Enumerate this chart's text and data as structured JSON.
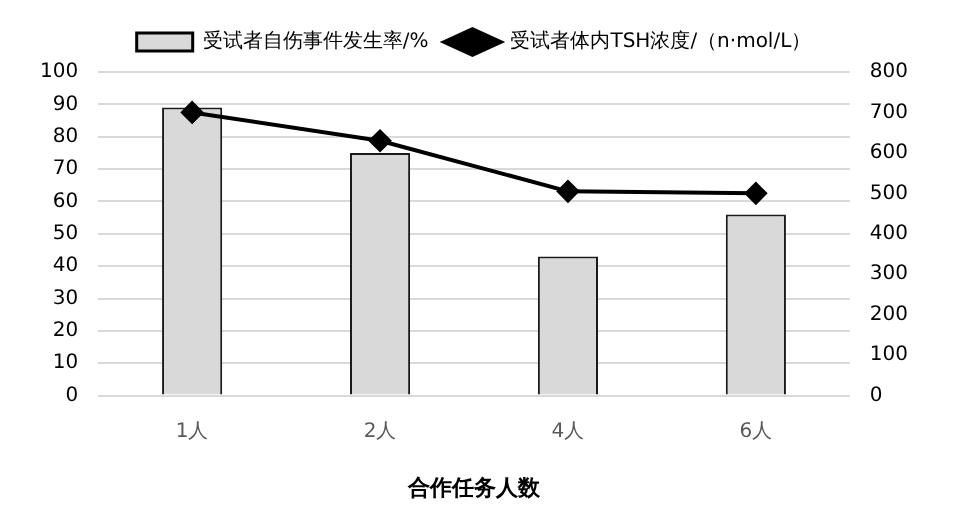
{
  "chart_data": {
    "type": "bar",
    "xlabel": "合作任务人数",
    "categories": [
      "1人",
      "2人",
      "4人",
      "6人"
    ],
    "series": [
      {
        "name": "受试者自伤事件发生率/%",
        "color": "#d9d9d9",
        "values": [
          89,
          75,
          43,
          56
        ]
      },
      {
        "name": "受试者体内TSH浓度/（n·mol/L）",
        "type": "line",
        "axis": "y2",
        "color": "#000000",
        "values": [
          700,
          630,
          505,
          500
        ],
        "marker": "diamond"
      }
    ],
    "ylim": [
      0,
      100
    ],
    "yticks": [
      0,
      10,
      20,
      30,
      40,
      50,
      60,
      70,
      80,
      90,
      100
    ],
    "y2lim": [
      0,
      800
    ],
    "y2ticks": [
      0,
      100,
      200,
      300,
      400,
      500,
      600,
      700,
      800
    ],
    "grid": "y",
    "legend": "top"
  }
}
